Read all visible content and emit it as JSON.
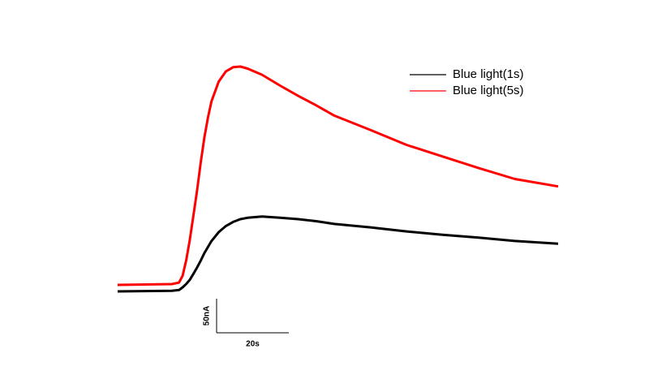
{
  "chart_data": {
    "type": "line",
    "x": [
      0,
      15,
      17,
      18,
      19,
      20,
      21,
      22,
      23,
      24,
      25,
      26,
      28,
      30,
      32,
      34,
      36,
      40,
      45,
      50,
      55,
      60,
      70,
      80,
      90,
      100,
      110,
      122
    ],
    "series": [
      {
        "name": "Blue light(1s)",
        "color": "#000000",
        "values": [
          0,
          1,
          2,
          6,
          11,
          17,
          26,
          35,
          45,
          56,
          65,
          74,
          87,
          96,
          102,
          106,
          108,
          110,
          108,
          106,
          103,
          99,
          94,
          88,
          83,
          79,
          74,
          70
        ]
      },
      {
        "name": "Blue light(5s)",
        "color": "#ff0000",
        "values": [
          9.5,
          10.7,
          13,
          23,
          46,
          76,
          112,
          148,
          189,
          225,
          255,
          279,
          308,
          323,
          329,
          330,
          327,
          318,
          302,
          287,
          273,
          258,
          237,
          215,
          198,
          181,
          165,
          154
        ]
      }
    ],
    "xlim": [
      0,
      122
    ],
    "ylim": [
      0,
      330
    ],
    "scale_bar": {
      "y_size": 50,
      "y_label": "50nA",
      "x_size": 20,
      "x_label": "20s"
    },
    "legend": "top-right"
  }
}
